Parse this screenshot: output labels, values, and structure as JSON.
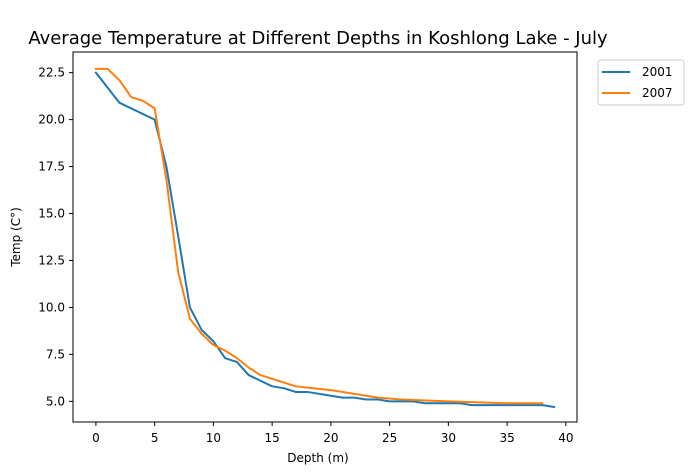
{
  "chart_data": {
    "type": "line",
    "title": "Average Temperature at Different Depths in Koshlong Lake - July",
    "xlabel": "Depth (m)",
    "ylabel": "Temp (C°)",
    "xlim": [
      -1.95,
      40.95
    ],
    "ylim": [
      3.9,
      23.6
    ],
    "xticks": [
      0,
      5,
      10,
      15,
      20,
      25,
      30,
      35,
      40
    ],
    "yticks": [
      5.0,
      7.5,
      10.0,
      12.5,
      15.0,
      17.5,
      20.0,
      22.5
    ],
    "xtick_labels": [
      "0",
      "5",
      "10",
      "15",
      "20",
      "25",
      "30",
      "35",
      "40"
    ],
    "ytick_labels": [
      "5.0",
      "7.5",
      "10.0",
      "12.5",
      "15.0",
      "17.5",
      "20.0",
      "22.5"
    ],
    "grid": false,
    "legend_position": "outside-top-right",
    "series": [
      {
        "name": "2001",
        "color": "#1f77b4",
        "x": [
          0,
          2,
          5,
          6,
          7,
          8,
          9,
          10,
          11,
          12,
          13,
          15,
          16,
          17,
          18,
          20,
          21,
          22,
          23,
          24,
          25,
          26,
          27,
          28,
          30,
          31,
          32,
          35,
          38,
          39
        ],
        "y": [
          22.5,
          20.9,
          20.0,
          17.5,
          13.8,
          10.0,
          8.8,
          8.2,
          7.3,
          7.1,
          6.4,
          5.8,
          5.7,
          5.5,
          5.5,
          5.3,
          5.2,
          5.2,
          5.1,
          5.1,
          5.0,
          5.0,
          5.0,
          4.9,
          4.9,
          4.9,
          4.8,
          4.8,
          4.8,
          4.7
        ]
      },
      {
        "name": "2007",
        "color": "#ff7f0e",
        "x": [
          0,
          1,
          2,
          3,
          4,
          5,
          6,
          7,
          8,
          9,
          10,
          11,
          12,
          13,
          14,
          15,
          17,
          20,
          22,
          24,
          26,
          30,
          35,
          38
        ],
        "y": [
          22.7,
          22.7,
          22.1,
          21.2,
          21.0,
          20.6,
          16.8,
          11.9,
          9.4,
          8.6,
          8.0,
          7.7,
          7.3,
          6.8,
          6.4,
          6.2,
          5.8,
          5.6,
          5.4,
          5.2,
          5.1,
          5.0,
          4.9,
          4.9
        ]
      }
    ]
  }
}
